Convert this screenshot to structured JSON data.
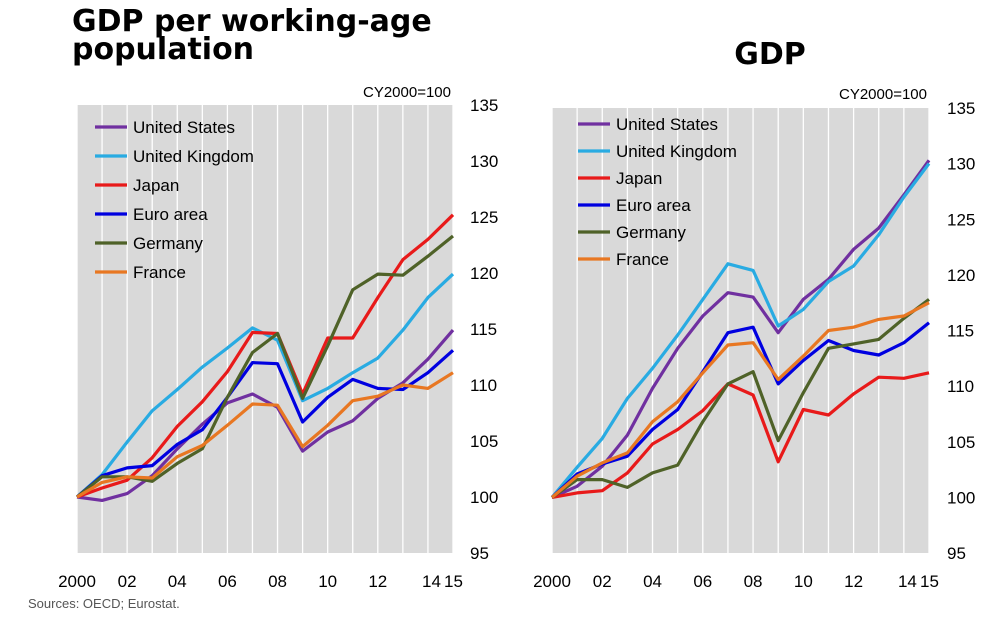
{
  "titles": {
    "left": "GDP per working-age population",
    "right": "GDP"
  },
  "source": "Sources: OECD; Eurostat.",
  "chart_data": [
    {
      "type": "line",
      "title": "GDP per working-age population",
      "note": "CY2000=100",
      "x": [
        2000,
        2001,
        2002,
        2003,
        2004,
        2005,
        2006,
        2007,
        2008,
        2009,
        2010,
        2011,
        2012,
        2013,
        2014,
        2015
      ],
      "x_tick_labels": [
        "2000",
        "02",
        "04",
        "06",
        "08",
        "10",
        "12",
        "14",
        "15"
      ],
      "x_tick_values": [
        2000,
        2002,
        2004,
        2006,
        2008,
        2010,
        2012,
        2014,
        2015
      ],
      "ylim": [
        95,
        135
      ],
      "y_ticks": [
        95,
        100,
        105,
        110,
        115,
        120,
        125,
        130,
        135
      ],
      "grid": true,
      "legend_position": "top-left",
      "series": [
        {
          "name": "United States",
          "color": "#7030a0",
          "values": [
            100,
            99.7,
            100.3,
            101.9,
            104.3,
            106.5,
            108.4,
            109.2,
            108.0,
            104.1,
            105.8,
            106.8,
            108.8,
            110.2,
            112.3,
            114.9
          ]
        },
        {
          "name": "United Kingdom",
          "color": "#29abe2",
          "values": [
            100,
            102.0,
            104.9,
            107.7,
            109.6,
            111.6,
            113.3,
            115.1,
            114.0,
            108.6,
            109.7,
            111.1,
            112.4,
            114.9,
            117.8,
            119.9
          ]
        },
        {
          "name": "Japan",
          "color": "#e81a1a",
          "values": [
            100,
            100.8,
            101.5,
            103.5,
            106.3,
            108.5,
            111.2,
            114.7,
            114.6,
            109.2,
            114.2,
            114.2,
            117.8,
            121.2,
            123.0,
            125.2
          ]
        },
        {
          "name": "Euro area",
          "color": "#0000e0",
          "values": [
            100,
            101.9,
            102.6,
            102.8,
            104.7,
            106.0,
            108.9,
            112.0,
            111.9,
            106.7,
            108.9,
            110.5,
            109.7,
            109.6,
            111.1,
            113.1
          ]
        },
        {
          "name": "Germany",
          "color": "#4f6228",
          "values": [
            100,
            101.8,
            101.8,
            101.4,
            103.0,
            104.3,
            108.9,
            112.9,
            114.6,
            108.8,
            113.5,
            118.5,
            119.9,
            119.8,
            121.5,
            123.3
          ]
        },
        {
          "name": "France",
          "color": "#e87722",
          "values": [
            100,
            101.3,
            101.8,
            101.7,
            103.6,
            104.6,
            106.4,
            108.3,
            108.2,
            104.5,
            106.4,
            108.6,
            109.0,
            110.0,
            109.7,
            111.1
          ]
        }
      ]
    },
    {
      "type": "line",
      "title": "GDP",
      "note": "CY2000=100",
      "x": [
        2000,
        2001,
        2002,
        2003,
        2004,
        2005,
        2006,
        2007,
        2008,
        2009,
        2010,
        2011,
        2012,
        2013,
        2014,
        2015
      ],
      "x_tick_labels": [
        "2000",
        "02",
        "04",
        "06",
        "08",
        "10",
        "12",
        "14",
        "15"
      ],
      "x_tick_values": [
        2000,
        2002,
        2004,
        2006,
        2008,
        2010,
        2012,
        2014,
        2015
      ],
      "ylim": [
        95,
        135
      ],
      "y_ticks": [
        95,
        100,
        105,
        110,
        115,
        120,
        125,
        130,
        135
      ],
      "grid": true,
      "legend_position": "top-left",
      "series": [
        {
          "name": "United States",
          "color": "#7030a0",
          "values": [
            100,
            101.0,
            102.8,
            105.6,
            109.8,
            113.4,
            116.3,
            118.4,
            118.0,
            114.8,
            117.8,
            119.6,
            122.3,
            124.2,
            127.2,
            130.3
          ]
        },
        {
          "name": "United Kingdom",
          "color": "#29abe2",
          "values": [
            100,
            102.7,
            105.3,
            108.9,
            111.6,
            114.6,
            117.8,
            121.0,
            120.4,
            115.4,
            116.9,
            119.4,
            120.8,
            123.6,
            127.0,
            130.0
          ]
        },
        {
          "name": "Japan",
          "color": "#e81a1a",
          "values": [
            100,
            100.4,
            100.6,
            102.2,
            104.8,
            106.1,
            107.8,
            110.2,
            109.2,
            103.2,
            107.9,
            107.4,
            109.3,
            110.8,
            110.7,
            111.2
          ]
        },
        {
          "name": "Euro area",
          "color": "#0000e0",
          "values": [
            100,
            102.1,
            103.0,
            103.7,
            106.1,
            107.9,
            111.3,
            114.8,
            115.3,
            110.2,
            112.3,
            114.1,
            113.2,
            112.8,
            113.9,
            115.7
          ]
        },
        {
          "name": "Germany",
          "color": "#4f6228",
          "values": [
            100,
            101.6,
            101.6,
            100.9,
            102.2,
            102.9,
            106.8,
            110.2,
            111.3,
            105.1,
            109.4,
            113.4,
            113.8,
            114.2,
            116.1,
            117.8
          ]
        },
        {
          "name": "France",
          "color": "#e87722",
          "values": [
            100,
            101.9,
            103.1,
            104.0,
            106.8,
            108.6,
            111.2,
            113.7,
            113.9,
            110.6,
            112.7,
            115.0,
            115.3,
            116.0,
            116.3,
            117.5
          ]
        }
      ]
    }
  ]
}
